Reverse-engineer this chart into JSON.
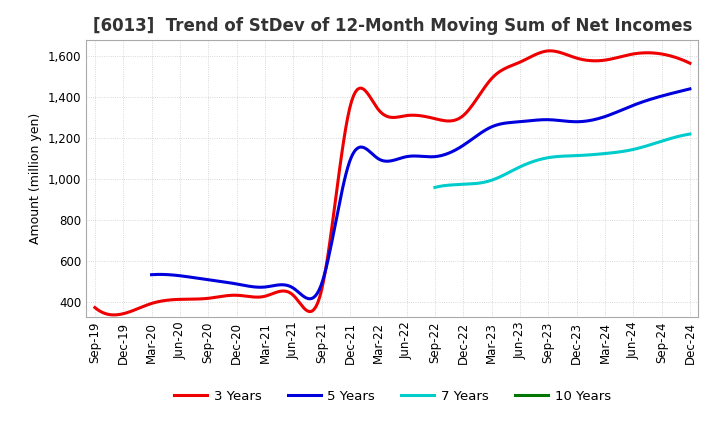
{
  "title": "[6013]  Trend of StDev of 12-Month Moving Sum of Net Incomes",
  "ylabel": "Amount (million yen)",
  "background_color": "#ffffff",
  "grid_color": "#cccccc",
  "ylim": [
    330,
    1680
  ],
  "yticks": [
    400,
    600,
    800,
    1000,
    1200,
    1400,
    1600
  ],
  "x_labels": [
    "Sep-19",
    "Dec-19",
    "Mar-20",
    "Jun-20",
    "Sep-20",
    "Dec-20",
    "Mar-21",
    "Jun-21",
    "Sep-21",
    "Dec-21",
    "Mar-22",
    "Jun-22",
    "Sep-22",
    "Dec-22",
    "Mar-23",
    "Jun-23",
    "Sep-23",
    "Dec-23",
    "Mar-24",
    "Jun-24",
    "Sep-24",
    "Dec-24"
  ],
  "series": {
    "3 Years": {
      "color": "#ee0000",
      "data": [
        375,
        345,
        395,
        415,
        420,
        435,
        430,
        435,
        460,
        1350,
        1340,
        1310,
        1295,
        1310,
        1490,
        1570,
        1625,
        1590,
        1580,
        1610,
        1610,
        1565
      ]
    },
    "5 Years": {
      "color": "#0000dd",
      "data": [
        null,
        null,
        535,
        530,
        510,
        490,
        475,
        470,
        490,
        1090,
        1100,
        1110,
        1110,
        1165,
        1255,
        1280,
        1290,
        1280,
        1305,
        1360,
        1405,
        1440
      ]
    },
    "7 Years": {
      "color": "#00cccc",
      "data": [
        null,
        null,
        null,
        null,
        null,
        null,
        null,
        null,
        null,
        null,
        null,
        null,
        960,
        975,
        995,
        1060,
        1105,
        1115,
        1125,
        1145,
        1185,
        1220
      ]
    },
    "10 Years": {
      "color": "#007700",
      "data": [
        null,
        null,
        null,
        null,
        null,
        null,
        null,
        null,
        null,
        null,
        null,
        null,
        null,
        null,
        null,
        null,
        null,
        null,
        null,
        null,
        null,
        null
      ]
    }
  },
  "title_fontsize": 12,
  "label_fontsize": 9,
  "tick_fontsize": 8.5,
  "linewidth": 2.2
}
